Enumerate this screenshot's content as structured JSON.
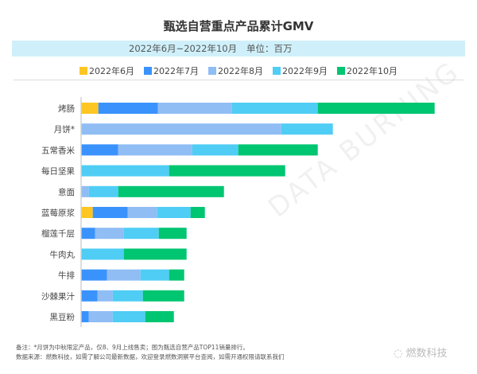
{
  "title": "甄选自营重点产品累计GMV",
  "subtitle": {
    "range": "2022年6月~2022年10月",
    "unit": "单位：百万"
  },
  "chart_data": {
    "type": "bar",
    "orientation": "horizontal",
    "stacked": true,
    "title": "甄选自营重点产品累计GMV",
    "categories": [
      "烤肠",
      "月饼*",
      "五常香米",
      "每日坚果",
      "意面",
      "蓝莓原浆",
      "榴莲千层",
      "牛肉丸",
      "牛排",
      "沙棘果汁",
      "黑豆粉"
    ],
    "series": [
      {
        "name": "2022年6月",
        "color": "#fdc623",
        "values": [
          21,
          0,
          0,
          0,
          0,
          14,
          0,
          0,
          0,
          0,
          0
        ]
      },
      {
        "name": "2022年7月",
        "color": "#3a93fd",
        "values": [
          75,
          0,
          46,
          0,
          0,
          44,
          17,
          0,
          32,
          20,
          9
        ]
      },
      {
        "name": "2022年8月",
        "color": "#90bdf4",
        "values": [
          93,
          251,
          93,
          0,
          9,
          37,
          36,
          0,
          42,
          19,
          30
        ]
      },
      {
        "name": "2022年9月",
        "color": "#4fcdf5",
        "values": [
          108,
          65,
          58,
          110,
          37,
          42,
          44,
          53,
          36,
          38,
          41
        ]
      },
      {
        "name": "2022年10月",
        "color": "#00c571",
        "values": [
          147,
          0,
          100,
          146,
          133,
          18,
          35,
          79,
          19,
          52,
          36
        ]
      }
    ],
    "value_note": "estimated relative values; no value axis printed",
    "grid": false,
    "legend_position": "top"
  },
  "footer": {
    "note": "备注：*月饼为中秋限定产品，仅8、9月上线售卖；图为甄选自营产品TOP11销量排行。",
    "source": "数据来源：燃数科技，如需了解公司最新数据，欢迎登录燃数洞察平台查阅，如需开通权限请联系我们"
  },
  "logo": "燃数科技",
  "watermark": "DATA BURNING"
}
